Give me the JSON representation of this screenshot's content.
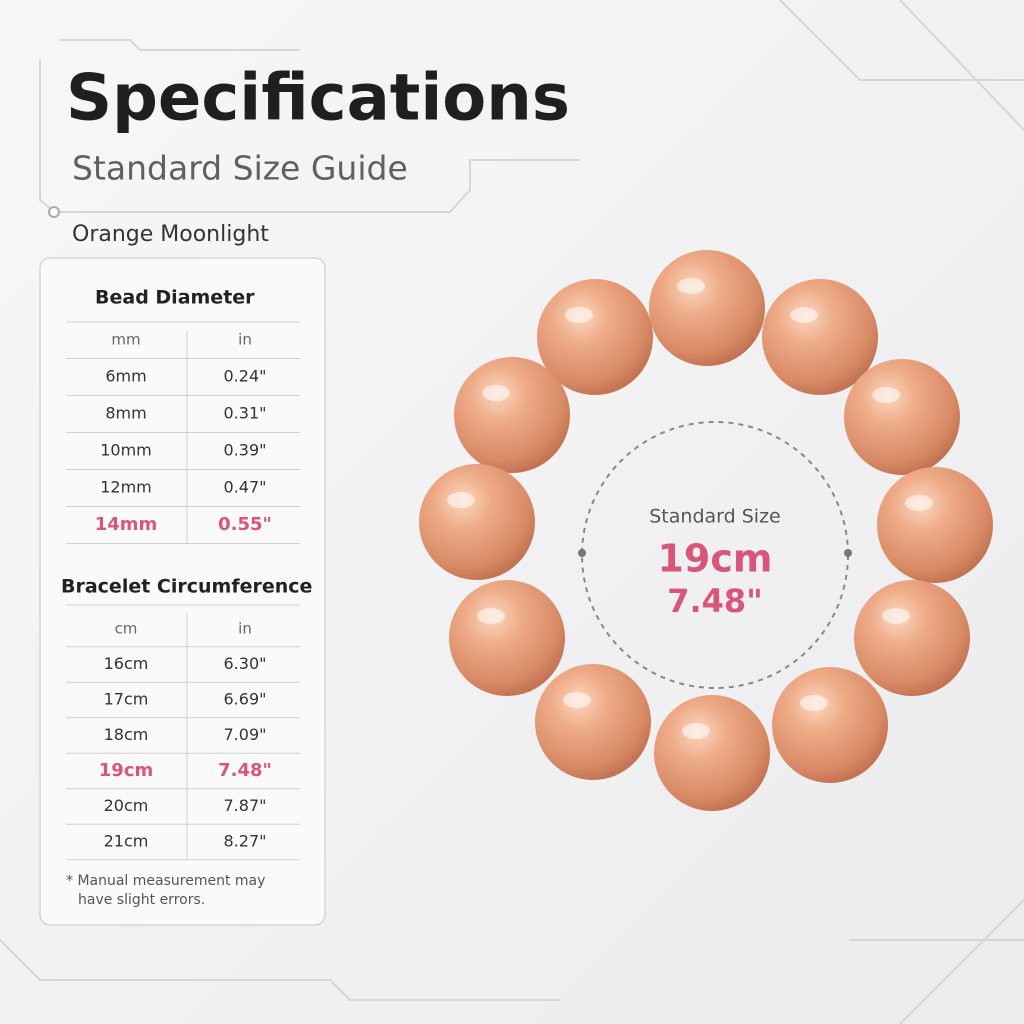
{
  "header": {
    "title": "Specifications",
    "subtitle": "Standard Size Guide",
    "product": "Orange Moonlight"
  },
  "bead_table": {
    "title": "Bead Diameter",
    "columns": [
      "mm",
      "in"
    ],
    "rows": [
      [
        "6mm",
        "0.24\""
      ],
      [
        "8mm",
        "0.31\""
      ],
      [
        "10mm",
        "0.39\""
      ],
      [
        "12mm",
        "0.47\""
      ],
      [
        "14mm",
        "0.55\""
      ]
    ],
    "highlight": 4
  },
  "bracelet_table": {
    "title": "Bracelet Circumference",
    "columns": [
      "cm",
      "in"
    ],
    "rows": [
      [
        "16cm",
        "6.30\""
      ],
      [
        "17cm",
        "6.69\""
      ],
      [
        "18cm",
        "7.09\""
      ],
      [
        "19cm",
        "7.48\""
      ],
      [
        "20cm",
        "7.87\""
      ],
      [
        "21cm",
        "8.27\""
      ]
    ],
    "highlight": 3
  },
  "note": [
    "* Manual measurement may",
    "have slight errors."
  ],
  "standard": {
    "label": "Standard Size",
    "cm": "19cm",
    "in": "7.48\""
  }
}
